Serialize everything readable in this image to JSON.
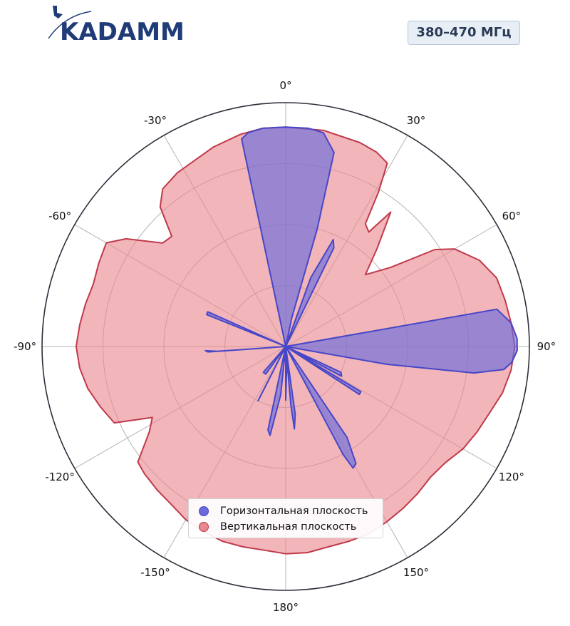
{
  "header": {
    "logo_text": "KADAMM",
    "band_label": "380–470 МГц"
  },
  "colors": {
    "horizontal_fill": "#6b6bdc",
    "horizontal_edge": "#4646c8",
    "vertical_fill": "#e88790",
    "vertical_edge": "#c0394a",
    "logo_blue": "#1f3b78"
  },
  "chart_data": {
    "type": "polar",
    "theta_zero": "top",
    "theta_direction": "clockwise",
    "angle_unit": "deg",
    "r_range": [
      0,
      1
    ],
    "r_ticks": [
      0.25,
      0.5,
      0.75
    ],
    "grid": true,
    "legend_position": "bottom-center",
    "theta_tick_labels": [
      "0°",
      "30°",
      "60°",
      "90°",
      "120°",
      "150°",
      "180°",
      "-150°",
      "-120°",
      "-90°",
      "-60°",
      "-30°"
    ],
    "series": [
      {
        "name": "Горизонтальная плоскость",
        "points": [
          [
            -12,
            0.87
          ],
          [
            -10,
            0.89
          ],
          [
            -6,
            0.9
          ],
          [
            0,
            0.9
          ],
          [
            6,
            0.9
          ],
          [
            10,
            0.89
          ],
          [
            14,
            0.82
          ],
          [
            15,
            0.5
          ],
          [
            12,
            0.12
          ],
          [
            8,
            0.0
          ],
          [
            24,
            0.0
          ],
          [
            26,
            0.45
          ],
          [
            24,
            0.48
          ],
          [
            20,
            0.3
          ],
          [
            18,
            0.0
          ],
          [
            60,
            0.0
          ],
          [
            80,
            0.88
          ],
          [
            84,
            0.93
          ],
          [
            88,
            0.95
          ],
          [
            91,
            0.95
          ],
          [
            94,
            0.93
          ],
          [
            96,
            0.9
          ],
          [
            98,
            0.78
          ],
          [
            100,
            0.42
          ],
          [
            104,
            0.0
          ],
          [
            112,
            0.0
          ],
          [
            121,
            0.36
          ],
          [
            123,
            0.36
          ],
          [
            118,
            0.0
          ],
          [
            112,
            0.0
          ],
          [
            115,
            0.25
          ],
          [
            118,
            0.26
          ],
          [
            114,
            0.0
          ],
          [
            140,
            0.0
          ],
          [
            146,
            0.45
          ],
          [
            149,
            0.56
          ],
          [
            151,
            0.57
          ],
          [
            152,
            0.5
          ],
          [
            148,
            0.0
          ],
          [
            164,
            0.0
          ],
          [
            172,
            0.28
          ],
          [
            174,
            0.34
          ],
          [
            175,
            0.24
          ],
          [
            170,
            0.0
          ],
          [
            178,
            0.0
          ],
          [
            180,
            0.15
          ],
          [
            180,
            0.22
          ],
          [
            178,
            0.1
          ],
          [
            175,
            0.0
          ],
          [
            190,
            0.0
          ],
          [
            192,
            0.35
          ],
          [
            190,
            0.37
          ],
          [
            186,
            0.2
          ],
          [
            184,
            0.0
          ],
          [
            198,
            0.0
          ],
          [
            207,
            0.22
          ],
          [
            207,
            0.25
          ],
          [
            202,
            0.0
          ],
          [
            215,
            0.0
          ],
          [
            216,
            0.14
          ],
          [
            221,
            0.14
          ],
          [
            219,
            0.0
          ],
          [
            262,
            0.0
          ],
          [
            266,
            0.32
          ],
          [
            267,
            0.33
          ],
          [
            266,
            0.28
          ],
          [
            270,
            0.0
          ],
          [
            276,
            0.0
          ],
          [
            292,
            0.35
          ],
          [
            294,
            0.35
          ],
          [
            286,
            0.0
          ],
          [
            348,
            0.0
          ]
        ]
      },
      {
        "name": "Вертикальная плоскость",
        "points": [
          [
            0,
            0.9
          ],
          [
            10,
            0.9
          ],
          [
            20,
            0.89
          ],
          [
            25,
            0.88
          ],
          [
            29,
            0.86
          ],
          [
            31,
            0.74
          ],
          [
            33,
            0.6
          ],
          [
            36,
            0.58
          ],
          [
            38,
            0.7
          ],
          [
            43,
            0.55
          ],
          [
            48,
            0.44
          ],
          [
            53,
            0.54
          ],
          [
            57,
            0.73
          ],
          [
            60,
            0.8
          ],
          [
            66,
            0.87
          ],
          [
            72,
            0.91
          ],
          [
            78,
            0.92
          ],
          [
            84,
            0.93
          ],
          [
            90,
            0.94
          ],
          [
            96,
            0.93
          ],
          [
            102,
            0.91
          ],
          [
            108,
            0.88
          ],
          [
            114,
            0.86
          ],
          [
            120,
            0.84
          ],
          [
            126,
            0.81
          ],
          [
            132,
            0.8
          ],
          [
            138,
            0.81
          ],
          [
            144,
            0.82
          ],
          [
            150,
            0.83
          ],
          [
            156,
            0.84
          ],
          [
            162,
            0.84
          ],
          [
            168,
            0.84
          ],
          [
            174,
            0.85
          ],
          [
            180,
            0.85
          ],
          [
            186,
            0.84
          ],
          [
            192,
            0.84
          ],
          [
            198,
            0.84
          ],
          [
            204,
            0.83
          ],
          [
            210,
            0.82
          ],
          [
            216,
            0.8
          ],
          [
            222,
            0.79
          ],
          [
            228,
            0.78
          ],
          [
            232,
            0.77
          ],
          [
            238,
            0.66
          ],
          [
            242,
            0.62
          ],
          [
            246,
            0.77
          ],
          [
            252,
            0.8
          ],
          [
            258,
            0.83
          ],
          [
            264,
            0.85
          ],
          [
            270,
            0.86
          ],
          [
            276,
            0.85
          ],
          [
            282,
            0.84
          ],
          [
            288,
            0.83
          ],
          [
            294,
            0.84
          ],
          [
            300,
            0.85
          ],
          [
            304,
            0.79
          ],
          [
            310,
            0.66
          ],
          [
            314,
            0.65
          ],
          [
            318,
            0.77
          ],
          [
            322,
            0.82
          ],
          [
            328,
            0.84
          ],
          [
            334,
            0.85
          ],
          [
            340,
            0.87
          ],
          [
            348,
            0.89
          ],
          [
            354,
            0.9
          ],
          [
            360,
            0.9
          ]
        ]
      }
    ]
  }
}
